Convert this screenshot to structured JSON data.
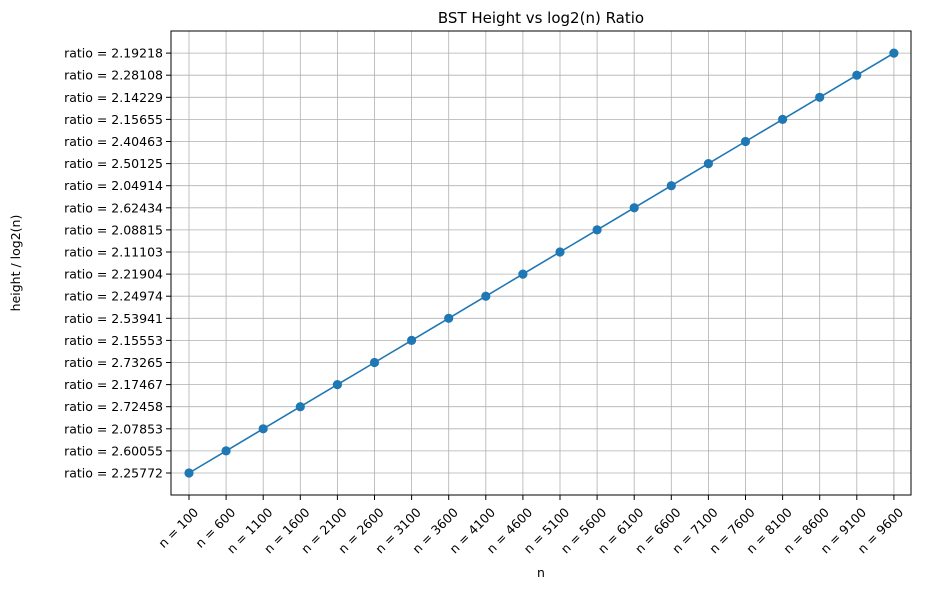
{
  "chart_data": {
    "type": "line",
    "title": "BST Height vs log2(n) Ratio",
    "xlabel": "n",
    "ylabel": "height / log2(n)",
    "categories": [
      "n = 100",
      "n = 600",
      "n = 1100",
      "n = 1600",
      "n = 2100",
      "n = 2600",
      "n = 3100",
      "n = 3600",
      "n = 4100",
      "n = 4600",
      "n = 5100",
      "n = 5600",
      "n = 6100",
      "n = 6600",
      "n = 7100",
      "n = 7600",
      "n = 8100",
      "n = 8600",
      "n = 9100",
      "n = 9600"
    ],
    "y_categories": [
      "ratio = 2.25772",
      "ratio = 2.60055",
      "ratio = 2.07853",
      "ratio = 2.72458",
      "ratio = 2.17467",
      "ratio = 2.73265",
      "ratio = 2.15553",
      "ratio = 2.53941",
      "ratio = 2.24974",
      "ratio = 2.21904",
      "ratio = 2.11103",
      "ratio = 2.08815",
      "ratio = 2.62434",
      "ratio = 2.04914",
      "ratio = 2.50125",
      "ratio = 2.40463",
      "ratio = 2.15655",
      "ratio = 2.14229",
      "ratio = 2.28108",
      "ratio = 2.19218"
    ],
    "series": [
      {
        "x": [
          "n = 100",
          "n = 600",
          "n = 1100",
          "n = 1600",
          "n = 2100",
          "n = 2600",
          "n = 3100",
          "n = 3600",
          "n = 4100",
          "n = 4600",
          "n = 5100",
          "n = 5600",
          "n = 6100",
          "n = 6600",
          "n = 7100",
          "n = 7600",
          "n = 8100",
          "n = 8600",
          "n = 9100",
          "n = 9600"
        ],
        "values": [
          "ratio = 2.25772",
          "ratio = 2.60055",
          "ratio = 2.07853",
          "ratio = 2.72458",
          "ratio = 2.17467",
          "ratio = 2.73265",
          "ratio = 2.15553",
          "ratio = 2.53941",
          "ratio = 2.24974",
          "ratio = 2.21904",
          "ratio = 2.11103",
          "ratio = 2.08815",
          "ratio = 2.62434",
          "ratio = 2.04914",
          "ratio = 2.50125",
          "ratio = 2.40463",
          "ratio = 2.15655",
          "ratio = 2.14229",
          "ratio = 2.28108",
          "ratio = 2.19218"
        ],
        "color": "#1f77b4",
        "marker": "circle"
      }
    ],
    "grid": true,
    "x_tick_rotation_deg": 45
  }
}
